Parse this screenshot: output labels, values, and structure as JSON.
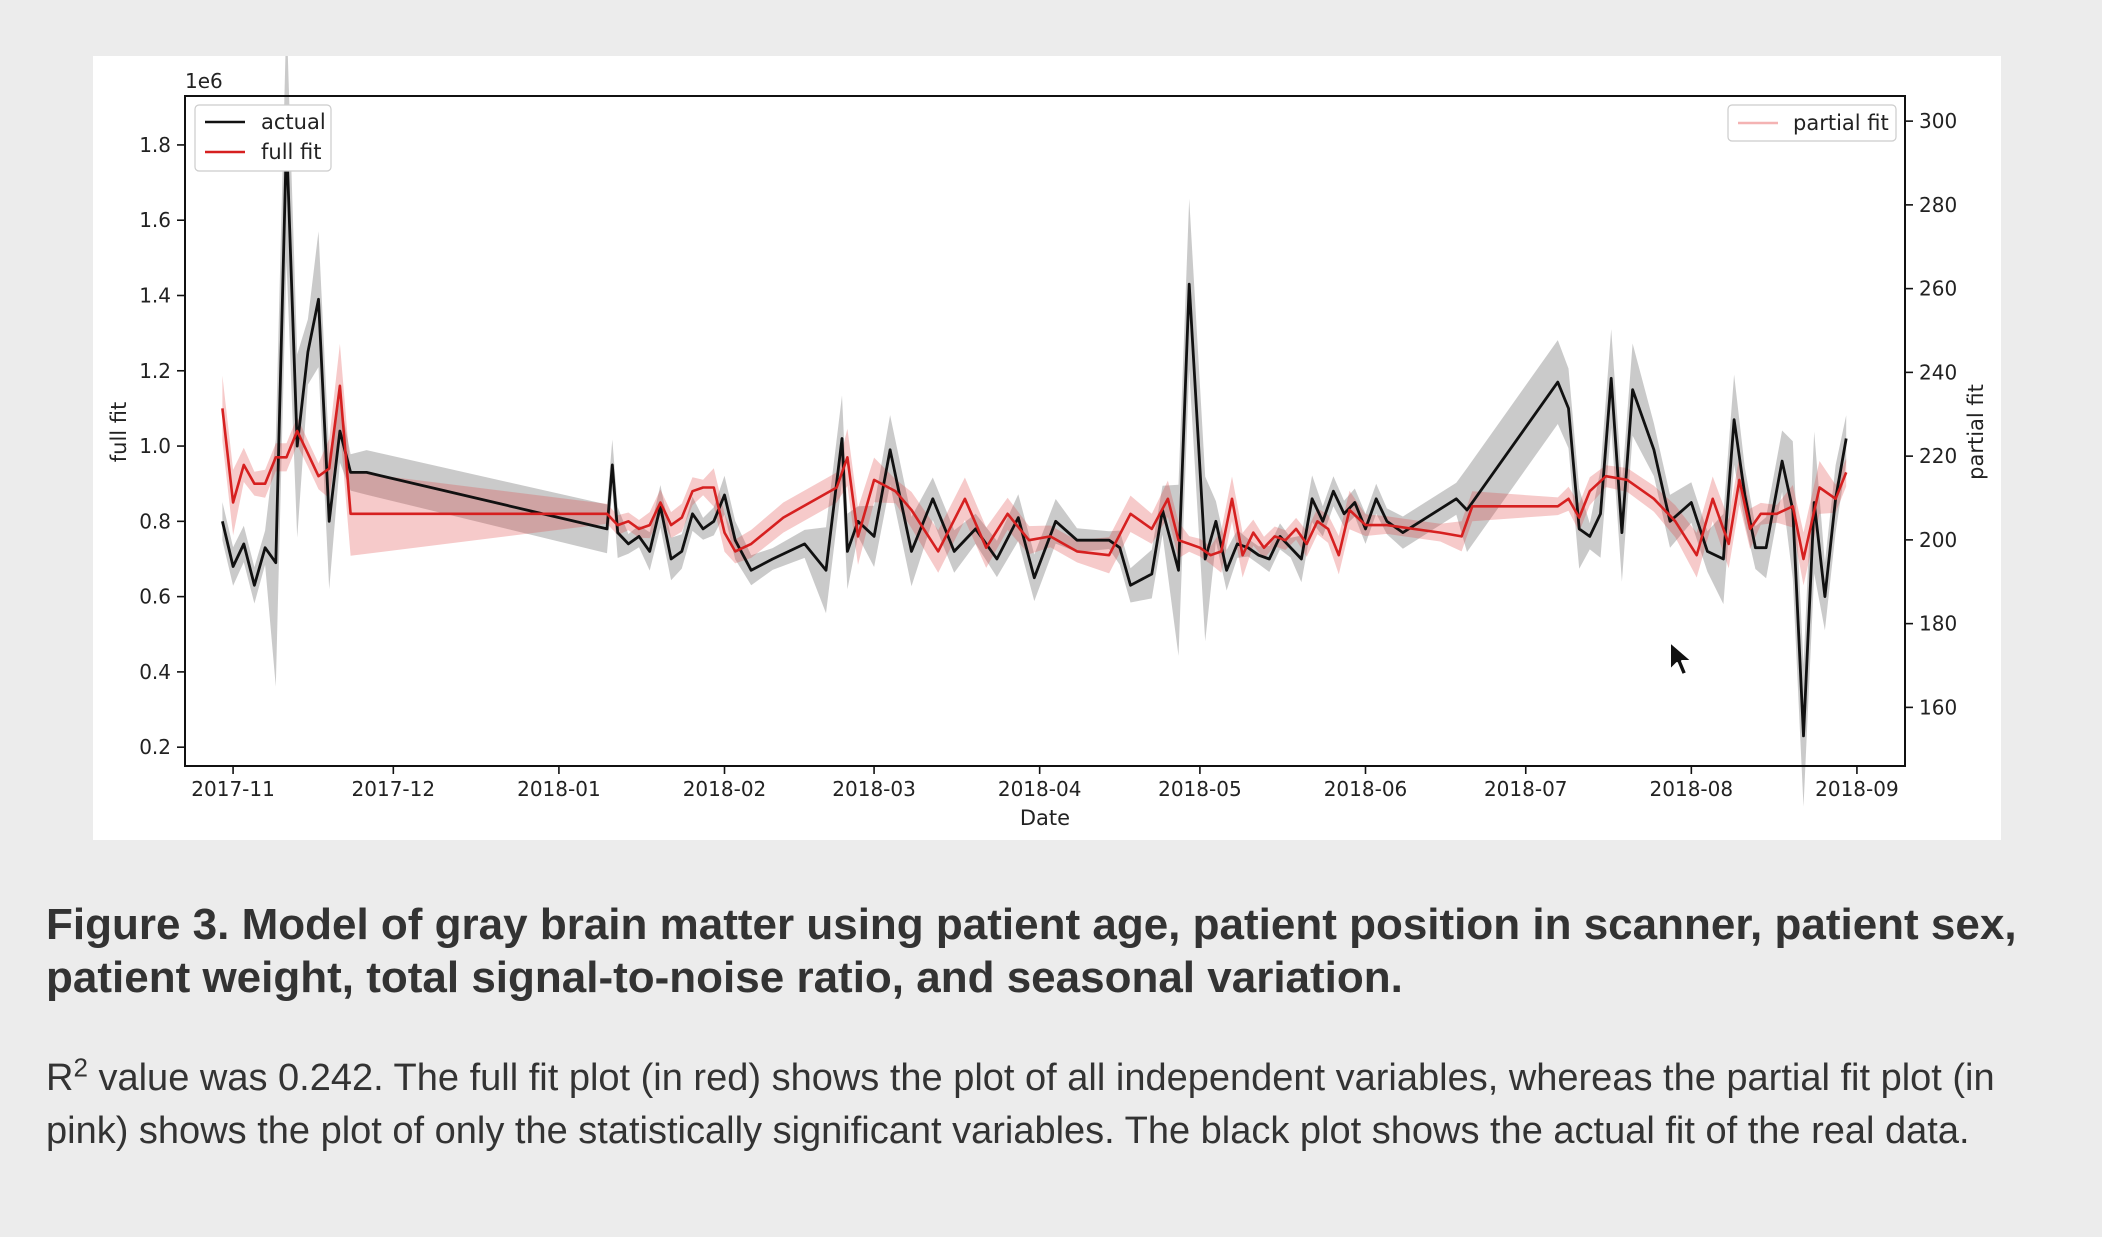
{
  "figure": {
    "caption_title": "Figure 3. Model of gray brain matter using patient age, patient position in scanner, patient sex, patient weight, total signal-to-noise ratio, and seasonal variation.",
    "caption_r": "R",
    "caption_sup": "2",
    "caption_rest": " value was 0.242. The full fit plot (in red) shows the plot of all independent variables, whereas the partial fit plot (in pink) shows the plot of only the statistically significant variables. The black plot shows the actual fit of the real data."
  },
  "colors": {
    "actual": "#111111",
    "full_fit": "#d62020",
    "partial_fit": "#f4b3b3",
    "band_gray": "#8a8a8a",
    "band_red": "#e04040",
    "page_bg": "#ececec"
  },
  "icons": {
    "cursor": "mouse-pointer-icon"
  },
  "chart_data": {
    "type": "line",
    "xlabel": "Date",
    "ylabel_left": "full fit",
    "ylabel_right": "partial fit",
    "offset_label": "1e6",
    "x_ticks": [
      "2017-11",
      "2017-12",
      "2018-01",
      "2018-02",
      "2018-03",
      "2018-04",
      "2018-05",
      "2018-06",
      "2018-07",
      "2018-08",
      "2018-09"
    ],
    "y_left_ticks": [
      "0.2",
      "0.4",
      "0.6",
      "0.8",
      "1.0",
      "1.2",
      "1.4",
      "1.6",
      "1.8"
    ],
    "y_right_ticks": [
      "160",
      "180",
      "200",
      "220",
      "240",
      "260",
      "280",
      "300"
    ],
    "ylim_left": [
      0.15,
      1.93
    ],
    "ylim_right": [
      146,
      306
    ],
    "xlim": [
      "2017-10-23",
      "2018-09-10"
    ],
    "legend": [
      {
        "label": "actual",
        "placement": "top-left"
      },
      {
        "label": "full fit",
        "placement": "top-left"
      },
      {
        "label": "partial fit",
        "placement": "top-right"
      }
    ],
    "series": [
      {
        "name": "actual",
        "axis": "left",
        "x": [
          "2017-10-30",
          "2017-11-01",
          "2017-11-03",
          "2017-11-05",
          "2017-11-07",
          "2017-11-09",
          "2017-11-11",
          "2017-11-13",
          "2017-11-15",
          "2017-11-17",
          "2017-11-19",
          "2017-11-21",
          "2017-11-23",
          "2017-11-26",
          "2018-01-10",
          "2018-01-11",
          "2018-01-12",
          "2018-01-14",
          "2018-01-16",
          "2018-01-18",
          "2018-01-20",
          "2018-01-22",
          "2018-01-24",
          "2018-01-26",
          "2018-01-28",
          "2018-01-30",
          "2018-02-01",
          "2018-02-03",
          "2018-02-06",
          "2018-02-10",
          "2018-02-16",
          "2018-02-20",
          "2018-02-23",
          "2018-02-24",
          "2018-02-26",
          "2018-03-01",
          "2018-03-04",
          "2018-03-08",
          "2018-03-12",
          "2018-03-16",
          "2018-03-20",
          "2018-03-24",
          "2018-03-28",
          "2018-03-31",
          "2018-04-04",
          "2018-04-08",
          "2018-04-14",
          "2018-04-16",
          "2018-04-18",
          "2018-04-22",
          "2018-04-24",
          "2018-04-27",
          "2018-04-29",
          "2018-05-02",
          "2018-05-04",
          "2018-05-06",
          "2018-05-08",
          "2018-05-10",
          "2018-05-12",
          "2018-05-14",
          "2018-05-16",
          "2018-05-18",
          "2018-05-20",
          "2018-05-22",
          "2018-05-24",
          "2018-05-26",
          "2018-05-28",
          "2018-05-30",
          "2018-06-01",
          "2018-06-03",
          "2018-06-05",
          "2018-06-08",
          "2018-06-18",
          "2018-06-20",
          "2018-07-07",
          "2018-07-09",
          "2018-07-11",
          "2018-07-13",
          "2018-07-15",
          "2018-07-17",
          "2018-07-19",
          "2018-07-21",
          "2018-07-25",
          "2018-07-28",
          "2018-08-01",
          "2018-08-04",
          "2018-08-07",
          "2018-08-09",
          "2018-08-11",
          "2018-08-13",
          "2018-08-15",
          "2018-08-18",
          "2018-08-20",
          "2018-08-22",
          "2018-08-24",
          "2018-08-26",
          "2018-08-28",
          "2018-08-30"
        ],
        "y": [
          0.8,
          0.68,
          0.74,
          0.63,
          0.73,
          0.69,
          1.82,
          1.0,
          1.25,
          1.39,
          0.8,
          1.04,
          0.93,
          0.93,
          0.78,
          0.95,
          0.77,
          0.74,
          0.76,
          0.72,
          0.84,
          0.7,
          0.72,
          0.82,
          0.78,
          0.8,
          0.87,
          0.75,
          0.67,
          0.7,
          0.74,
          0.67,
          1.02,
          0.72,
          0.8,
          0.76,
          0.99,
          0.72,
          0.86,
          0.72,
          0.78,
          0.7,
          0.81,
          0.65,
          0.8,
          0.75,
          0.75,
          0.73,
          0.63,
          0.66,
          0.83,
          0.67,
          1.43,
          0.7,
          0.8,
          0.67,
          0.74,
          0.73,
          0.71,
          0.7,
          0.76,
          0.73,
          0.7,
          0.86,
          0.8,
          0.88,
          0.82,
          0.85,
          0.78,
          0.86,
          0.8,
          0.77,
          0.86,
          0.83,
          1.17,
          1.1,
          0.78,
          0.76,
          0.82,
          1.18,
          0.77,
          1.15,
          0.99,
          0.8,
          0.85,
          0.72,
          0.7,
          1.07,
          0.87,
          0.73,
          0.73,
          0.96,
          0.83,
          0.23,
          0.85,
          0.6,
          0.86,
          1.02
        ]
      },
      {
        "name": "full fit",
        "axis": "left",
        "x": [
          "2017-10-30",
          "2017-11-01",
          "2017-11-03",
          "2017-11-05",
          "2017-11-07",
          "2017-11-09",
          "2017-11-11",
          "2017-11-13",
          "2017-11-15",
          "2017-11-17",
          "2017-11-19",
          "2017-11-21",
          "2017-11-23",
          "2018-01-10",
          "2018-01-12",
          "2018-01-14",
          "2018-01-16",
          "2018-01-18",
          "2018-01-20",
          "2018-01-22",
          "2018-01-24",
          "2018-01-26",
          "2018-01-28",
          "2018-01-30",
          "2018-02-01",
          "2018-02-03",
          "2018-02-06",
          "2018-02-12",
          "2018-02-22",
          "2018-02-24",
          "2018-02-26",
          "2018-03-01",
          "2018-03-05",
          "2018-03-08",
          "2018-03-13",
          "2018-03-18",
          "2018-03-22",
          "2018-03-26",
          "2018-03-30",
          "2018-04-03",
          "2018-04-08",
          "2018-04-14",
          "2018-04-18",
          "2018-04-22",
          "2018-04-25",
          "2018-04-27",
          "2018-04-29",
          "2018-05-01",
          "2018-05-03",
          "2018-05-05",
          "2018-05-07",
          "2018-05-09",
          "2018-05-11",
          "2018-05-13",
          "2018-05-15",
          "2018-05-17",
          "2018-05-19",
          "2018-05-21",
          "2018-05-23",
          "2018-05-25",
          "2018-05-27",
          "2018-05-29",
          "2018-06-01",
          "2018-06-05",
          "2018-06-15",
          "2018-06-19",
          "2018-06-21",
          "2018-07-07",
          "2018-07-09",
          "2018-07-11",
          "2018-07-13",
          "2018-07-16",
          "2018-07-20",
          "2018-07-25",
          "2018-07-29",
          "2018-08-02",
          "2018-08-05",
          "2018-08-08",
          "2018-08-10",
          "2018-08-12",
          "2018-08-14",
          "2018-08-17",
          "2018-08-20",
          "2018-08-22",
          "2018-08-25",
          "2018-08-28",
          "2018-08-30"
        ],
        "y": [
          1.1,
          0.85,
          0.95,
          0.9,
          0.9,
          0.97,
          0.97,
          1.04,
          0.98,
          0.92,
          0.94,
          1.16,
          0.82,
          0.82,
          0.79,
          0.8,
          0.78,
          0.79,
          0.85,
          0.79,
          0.81,
          0.88,
          0.89,
          0.89,
          0.77,
          0.72,
          0.74,
          0.81,
          0.89,
          0.97,
          0.76,
          0.91,
          0.88,
          0.83,
          0.72,
          0.86,
          0.73,
          0.82,
          0.75,
          0.76,
          0.72,
          0.71,
          0.82,
          0.78,
          0.86,
          0.75,
          0.74,
          0.73,
          0.71,
          0.72,
          0.86,
          0.71,
          0.77,
          0.73,
          0.76,
          0.75,
          0.78,
          0.74,
          0.8,
          0.78,
          0.71,
          0.83,
          0.79,
          0.79,
          0.77,
          0.76,
          0.84,
          0.84,
          0.86,
          0.81,
          0.88,
          0.92,
          0.91,
          0.86,
          0.8,
          0.71,
          0.86,
          0.74,
          0.91,
          0.78,
          0.82,
          0.82,
          0.84,
          0.7,
          0.89,
          0.86,
          0.93
        ]
      }
    ]
  }
}
